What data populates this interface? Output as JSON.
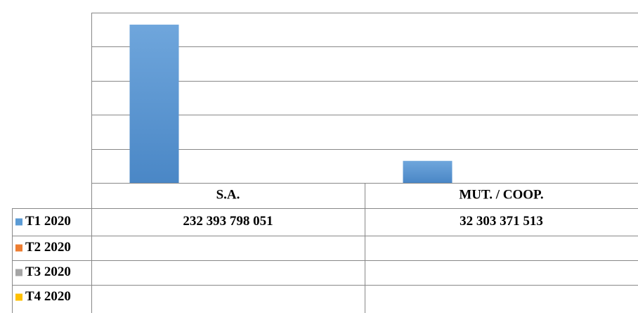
{
  "chart_data": {
    "type": "bar",
    "categories": [
      "S.A.",
      "MUT. / COOP."
    ],
    "series": [
      {
        "name": "T1 2020",
        "color": "#5b9bd5",
        "values": [
          232393798051,
          32303371513
        ],
        "value_labels": [
          "232 393 798 051",
          "32 303 371 513"
        ]
      },
      {
        "name": "T2 2020",
        "color": "#ed7d31",
        "values": [
          null,
          null
        ]
      },
      {
        "name": "T3 2020",
        "color": "#a5a5a5",
        "values": [
          null,
          null
        ]
      },
      {
        "name": "T4 2020",
        "color": "#ffc000",
        "values": [
          null,
          null
        ]
      }
    ],
    "ylim": [
      0,
      250000000000
    ],
    "yticks": [
      0,
      50000000000,
      100000000000,
      150000000000,
      200000000000,
      250000000000
    ],
    "grid": true,
    "data_table": true
  }
}
